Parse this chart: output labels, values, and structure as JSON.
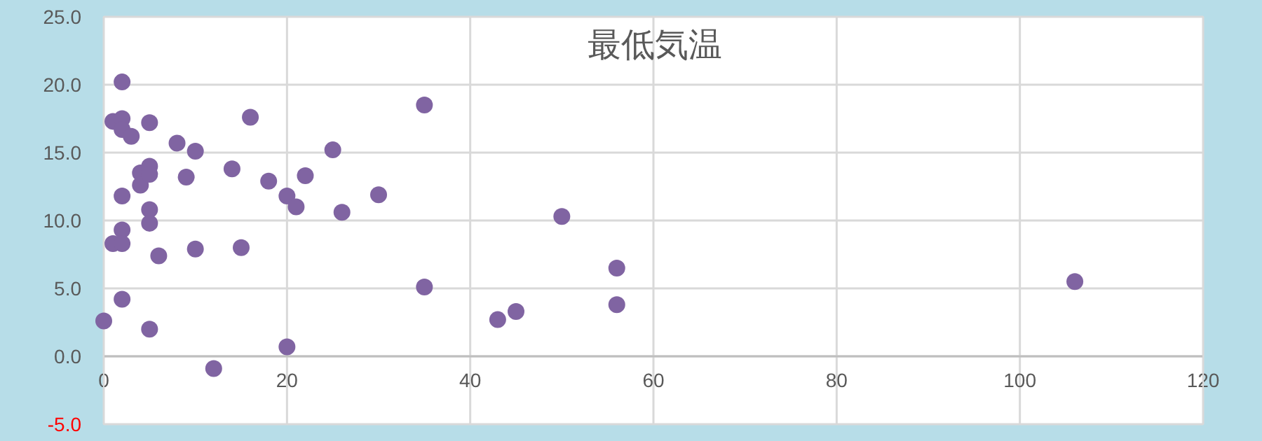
{
  "chart_data": {
    "type": "scatter",
    "title": "最低気温",
    "series": [
      {
        "color": "#8064a2",
        "x": [
          0,
          1,
          2,
          2,
          2,
          3,
          5,
          4,
          4,
          5,
          5,
          2,
          5,
          5,
          2,
          1,
          2,
          6,
          2,
          5,
          8,
          10,
          9,
          10,
          12,
          14,
          15,
          16,
          18,
          20,
          21,
          22,
          25,
          26,
          30,
          20,
          35,
          35,
          43,
          45,
          50,
          56,
          56,
          106
        ],
        "values": [
          2.6,
          17.3,
          20.2,
          17.5,
          16.7,
          16.2,
          17.2,
          13.5,
          12.6,
          14.0,
          13.4,
          11.8,
          10.8,
          9.8,
          9.3,
          8.3,
          8.3,
          7.4,
          4.2,
          2.0,
          15.7,
          15.1,
          13.2,
          7.9,
          -0.9,
          13.8,
          8.0,
          17.6,
          12.9,
          11.8,
          11.0,
          13.3,
          15.2,
          10.6,
          11.9,
          0.7,
          18.5,
          5.1,
          2.7,
          3.3,
          10.3,
          6.5,
          3.8,
          5.5
        ]
      }
    ],
    "xlim": [
      0,
      120
    ],
    "xticks": [
      0,
      20,
      40,
      60,
      80,
      100,
      120
    ],
    "ylim": [
      -5,
      25
    ],
    "yticks": [
      {
        "value": -5,
        "label": "-5.0"
      },
      {
        "value": 0,
        "label": "0.0"
      },
      {
        "value": 5,
        "label": "5.0"
      },
      {
        "value": 10,
        "label": "10.0"
      },
      {
        "value": 15,
        "label": "15.0"
      },
      {
        "value": 20,
        "label": "20.0"
      },
      {
        "value": 25,
        "label": "25.0"
      }
    ],
    "grid": true,
    "marker": "circle"
  }
}
